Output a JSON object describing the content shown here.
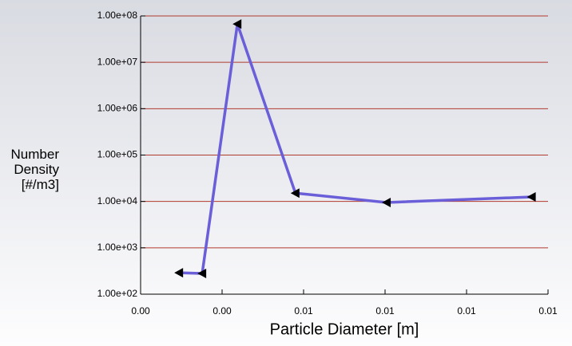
{
  "chart_data": {
    "type": "line",
    "xlabel": "Particle Diameter [m]",
    "ylabel": "Number Density [#/m3]",
    "x": [
      0.00118,
      0.00189,
      0.00297,
      0.00475,
      0.00755,
      0.012
    ],
    "values": [
      290,
      280,
      67000000,
      15100,
      9500,
      12500
    ],
    "color": "#6a5fd8",
    "marker_color": "#000000",
    "grid_color": "#b03a2e",
    "log_y": true,
    "grid": true,
    "xlim": [
      0,
      0.0125
    ],
    "xticks": [
      {
        "value": 0,
        "label": "0.00"
      },
      {
        "value": 0.0025,
        "label": "0.00"
      },
      {
        "value": 0.005,
        "label": "0.01"
      },
      {
        "value": 0.0075,
        "label": "0.01"
      },
      {
        "value": 0.01,
        "label": "0.01"
      },
      {
        "value": 0.0125,
        "label": "0.01"
      }
    ],
    "ylim": [
      100,
      100000000
    ],
    "yticks": [
      {
        "value": 100,
        "label": "1.00e+02"
      },
      {
        "value": 1000,
        "label": "1.00e+03"
      },
      {
        "value": 10000,
        "label": "1.00e+04"
      },
      {
        "value": 100000,
        "label": "1.00e+05"
      },
      {
        "value": 1000000,
        "label": "1.00e+06"
      },
      {
        "value": 10000000,
        "label": "1.00e+07"
      },
      {
        "value": 100000000,
        "label": "1.00e+08"
      }
    ]
  }
}
